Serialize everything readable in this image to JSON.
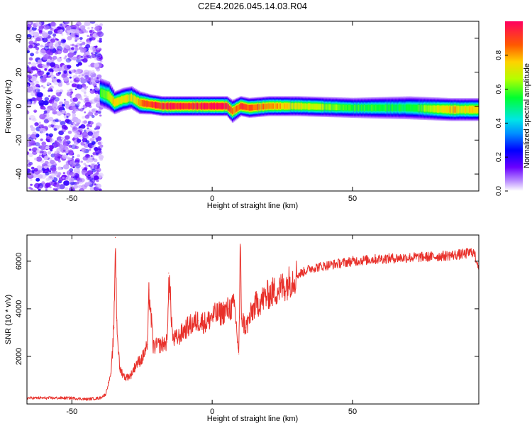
{
  "figure_title": "C2E4.2026.045.14.03.R04",
  "chart_data": [
    {
      "type": "heatmap",
      "title": "",
      "xlabel": "Height of straight line (km)",
      "ylabel": "Frequency (Hz)",
      "xlim": [
        -66,
        95
      ],
      "ylim": [
        -50,
        50
      ],
      "xticks": [
        -50,
        0,
        50
      ],
      "yticks": [
        -40,
        -20,
        0,
        20,
        40
      ],
      "colorbar": {
        "label": "Normalized spectral amplitude",
        "range": [
          0.0,
          1.0
        ],
        "ticks": [
          "0.0",
          "0.2",
          "0.4",
          "0.6",
          "0.8"
        ]
      },
      "noise_region_x": [
        -66,
        -40
      ],
      "ridge": {
        "x": [
          -40,
          -37,
          -35,
          -32,
          -29,
          -26,
          -22,
          -18,
          -14,
          -10,
          -5,
          0,
          5,
          7,
          10,
          13,
          20,
          30,
          50,
          70,
          85,
          95
        ],
        "y": [
          8,
          6,
          2,
          4,
          5,
          2,
          1,
          0,
          0,
          0,
          0,
          0,
          0,
          -3,
          0,
          -1,
          0,
          0,
          -1,
          -1,
          -2,
          -2
        ],
        "peak_amplitude": [
          0.55,
          0.65,
          0.75,
          0.7,
          0.72,
          0.8,
          0.9,
          0.95,
          0.95,
          0.95,
          0.95,
          0.98,
          0.95,
          0.8,
          0.9,
          0.85,
          0.8,
          0.7,
          0.55,
          0.5,
          0.75,
          0.7
        ],
        "half_width": [
          5,
          5,
          4,
          4,
          4,
          4,
          3.5,
          3.5,
          3.5,
          3.5,
          3.5,
          3.5,
          3.5,
          4,
          3.5,
          3.5,
          3.5,
          3.5,
          3.5,
          4,
          4,
          4
        ]
      }
    },
    {
      "type": "line",
      "title": "",
      "xlabel": "Height of straight line (km)",
      "ylabel": "SNR (10 * v/v)",
      "xlim": [
        -66,
        95
      ],
      "ylim": [
        0,
        7100
      ],
      "xticks": [
        -50,
        0,
        50
      ],
      "yticks": [
        2000,
        4000,
        6000
      ],
      "color": "#e8302a",
      "x": [
        -66,
        -60,
        -50,
        -45,
        -40,
        -38,
        -36,
        -35,
        -34.5,
        -34,
        -33,
        -31,
        -29,
        -27,
        -25,
        -23,
        -22.5,
        -21,
        -18,
        -16,
        -15.5,
        -14,
        -12,
        -10,
        -8,
        -5,
        -2,
        0,
        3,
        6,
        8,
        9.5,
        10,
        10.5,
        12,
        15,
        20,
        25,
        30,
        35,
        40,
        50,
        60,
        70,
        80,
        90,
        93,
        95
      ],
      "y": [
        250,
        250,
        250,
        200,
        250,
        400,
        1300,
        3200,
        7000,
        3500,
        1500,
        1100,
        1200,
        1700,
        1900,
        2500,
        4800,
        2400,
        2500,
        2600,
        5500,
        2700,
        2800,
        3100,
        3300,
        3500,
        3400,
        3700,
        3800,
        4000,
        4100,
        2100,
        6400,
        3600,
        3200,
        4100,
        4600,
        4900,
        5400,
        5700,
        5800,
        6000,
        6100,
        6150,
        6200,
        6300,
        6400,
        5800
      ]
    }
  ]
}
